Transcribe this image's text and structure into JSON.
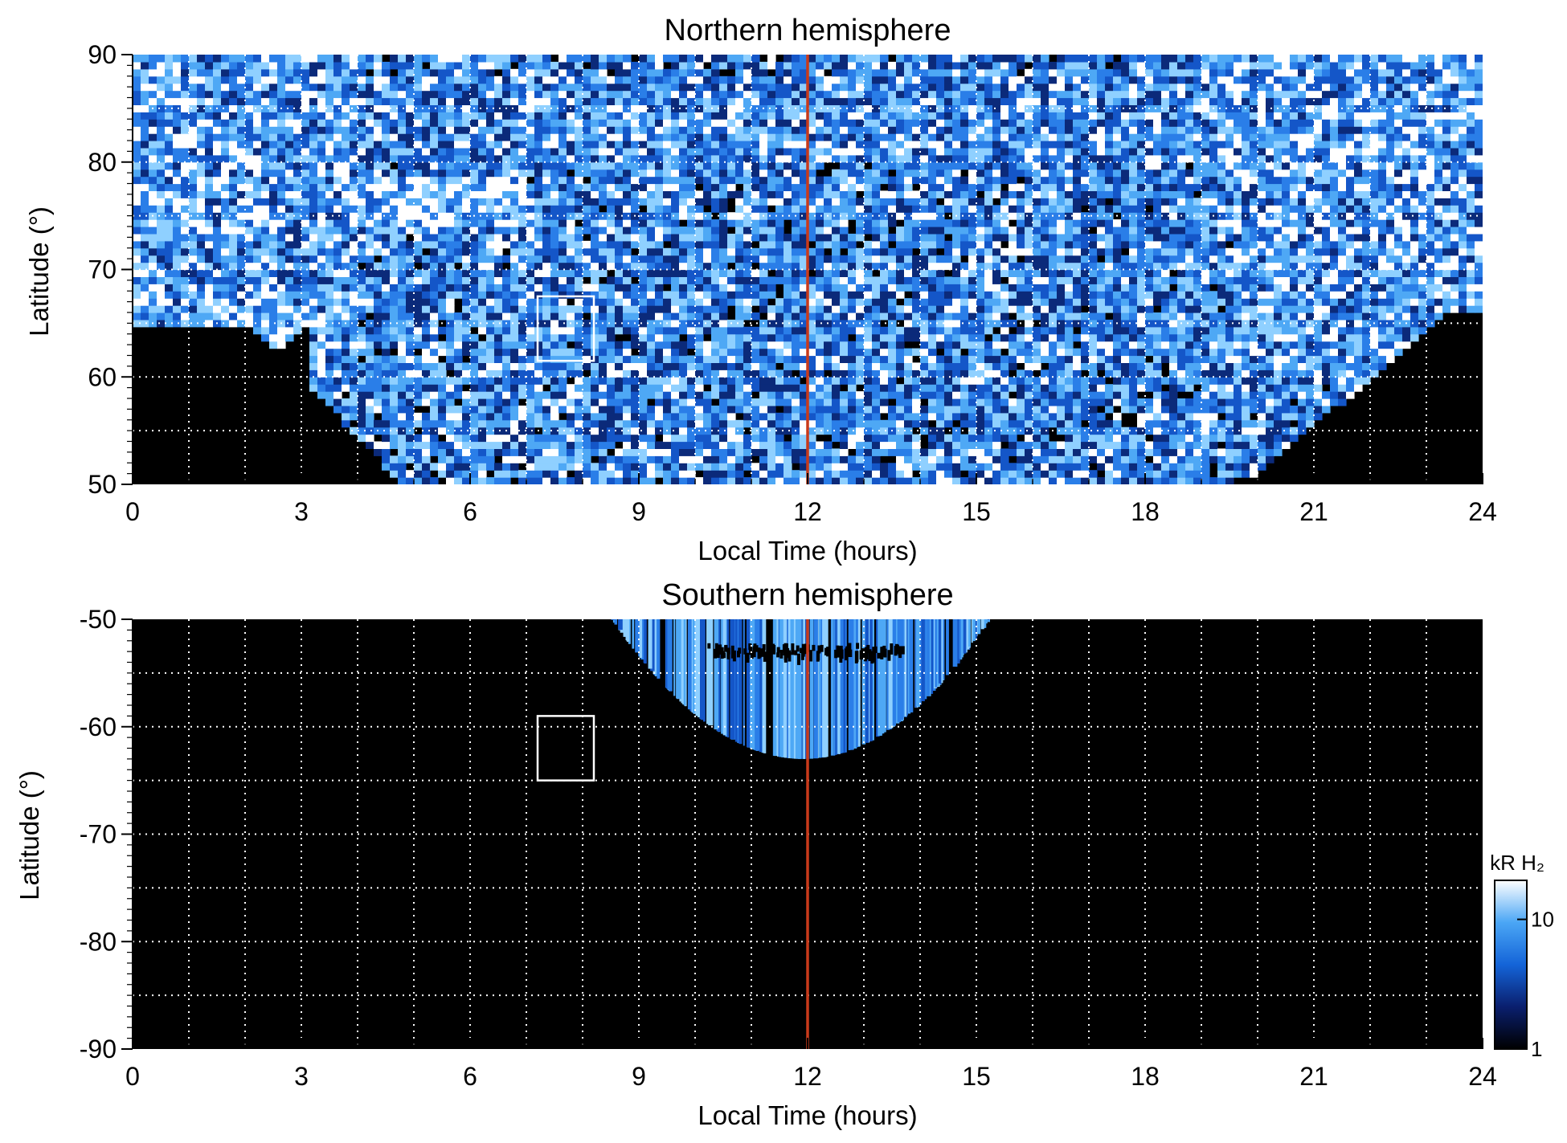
{
  "chart_data": [
    {
      "type": "heatmap",
      "title": "Northern hemisphere",
      "xlabel": "Local Time (hours)",
      "ylabel": "Latitude (°)",
      "xlim": [
        0,
        24
      ],
      "ylim": [
        50,
        90
      ],
      "xticks": [
        "0",
        "3",
        "6",
        "9",
        "12",
        "15",
        "18",
        "21",
        "24"
      ],
      "yticks": [
        "50",
        "60",
        "70",
        "80",
        "90"
      ],
      "grid": true,
      "grid_x_every": 1,
      "grid_y_every": 5,
      "marker_line_x": 12,
      "box": {
        "x": [
          7.2,
          8.2
        ],
        "y": [
          61.5,
          67.5
        ]
      },
      "coverage": "Emission covers most local times above ~65° latitude; dark unobserved gaps near 0–4.5 h and 20–24 h at low latitudes",
      "colormap": "black → blue → white (log)"
    },
    {
      "type": "heatmap",
      "title": "Southern hemisphere",
      "xlabel": "Local Time (hours)",
      "ylabel": "Latitude (°)",
      "xlim": [
        0,
        24
      ],
      "ylim": [
        -90,
        -50
      ],
      "xticks": [
        "0",
        "3",
        "6",
        "9",
        "12",
        "15",
        "18",
        "21",
        "24"
      ],
      "yticks": [
        "-90",
        "-80",
        "-70",
        "-60",
        "-50"
      ],
      "grid": true,
      "grid_x_every": 1,
      "grid_y_every": 5,
      "marker_line_x": 12,
      "box": {
        "x": [
          7.2,
          8.2
        ],
        "y": [
          -65,
          -59
        ]
      },
      "coverage": "Emission only between ~8.5 h and ~15.2 h local time, from -50° down to about -63°",
      "colormap": "black → blue → white (log)"
    }
  ],
  "colorbar": {
    "label": "kR H₂",
    "ticks": [
      "1",
      "10"
    ],
    "range": [
      1,
      20
    ],
    "scale": "log",
    "colors": [
      "#000000",
      "#0a1f6e",
      "#1464d8",
      "#4aa6f5",
      "#ffffff"
    ]
  },
  "colors": {
    "marker_line": "#c93a1a",
    "grid": "#ffffff",
    "box": "#ffffff",
    "background": "#000000"
  }
}
